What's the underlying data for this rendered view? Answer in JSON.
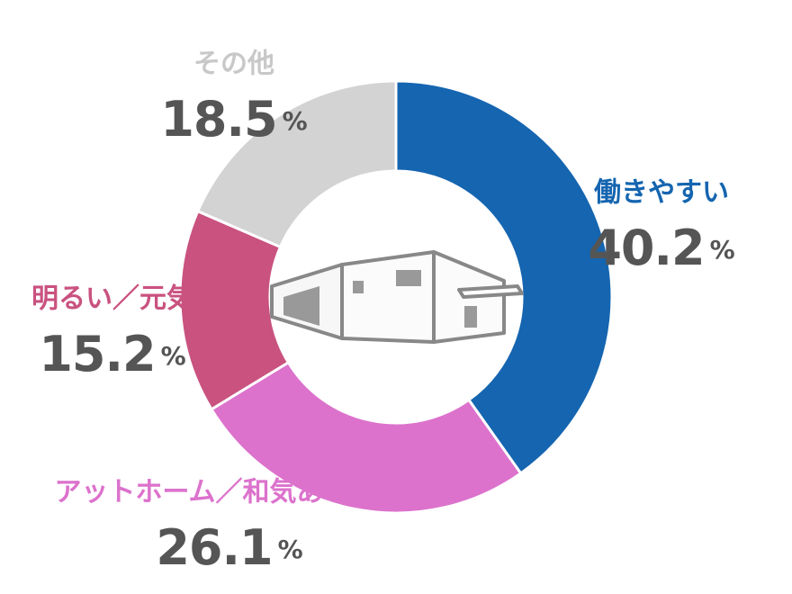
{
  "chart_data": {
    "type": "donut",
    "categories": [
      "働きやすい",
      "アットホーム／和気あいあい",
      "明るい／元気",
      "その他"
    ],
    "values": [
      40.2,
      26.1,
      15.2,
      18.5
    ],
    "colors": [
      "#1565b0",
      "#dc72cc",
      "#c9527f",
      "#d3d3d3"
    ],
    "unit": "%"
  }
}
